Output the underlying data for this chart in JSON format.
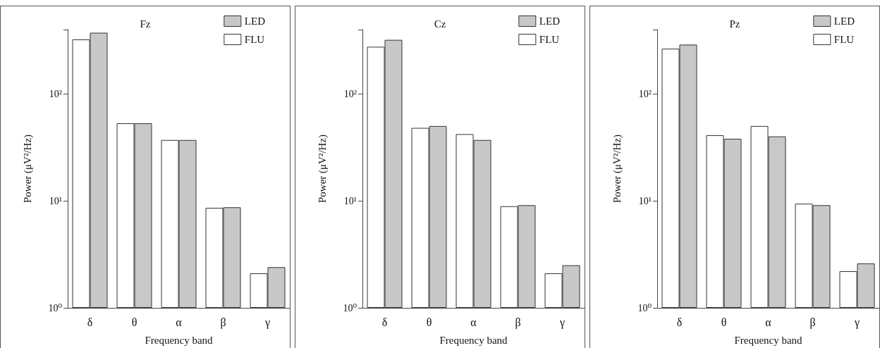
{
  "chart_data": [
    {
      "type": "bar",
      "title": "Fz",
      "xlabel": "Frequency band",
      "ylabel": "Power (μV²/Hz)",
      "categories": [
        "δ",
        "θ",
        "α",
        "β",
        "γ"
      ],
      "log": true,
      "ylim": [
        1,
        398
      ],
      "yticks": [
        {
          "value": 1,
          "label": "10⁰"
        },
        {
          "value": 10,
          "label": "10¹"
        },
        {
          "value": 100,
          "label": "10²"
        },
        {
          "value": 398,
          "label": null
        }
      ],
      "legend": "top right",
      "grid": false,
      "series": [
        {
          "name": "FLU",
          "color": "#ffffff",
          "values": [
            322,
            53,
            37,
            8.6,
            2.1
          ]
        },
        {
          "name": "LED",
          "color": "#c8c8c8",
          "values": [
            372,
            53,
            37,
            8.7,
            2.4
          ]
        }
      ]
    },
    {
      "type": "bar",
      "title": "Cz",
      "xlabel": "Frequency band",
      "ylabel": "Power (μV²/Hz)",
      "categories": [
        "δ",
        "θ",
        "α",
        "β",
        "γ"
      ],
      "log": true,
      "ylim": [
        1,
        398
      ],
      "yticks": [
        {
          "value": 1,
          "label": "10⁰"
        },
        {
          "value": 10,
          "label": "10¹"
        },
        {
          "value": 100,
          "label": "10²"
        },
        {
          "value": 398,
          "label": null
        }
      ],
      "legend": "top right",
      "grid": false,
      "series": [
        {
          "name": "FLU",
          "color": "#ffffff",
          "values": [
            275,
            48,
            42,
            8.9,
            2.1
          ]
        },
        {
          "name": "LED",
          "color": "#c8c8c8",
          "values": [
            319,
            50,
            37,
            9.1,
            2.5
          ]
        }
      ]
    },
    {
      "type": "bar",
      "title": "Pz",
      "xlabel": "Frequency band",
      "ylabel": "Power (μV²/Hz)",
      "categories": [
        "δ",
        "θ",
        "α",
        "β",
        "γ"
      ],
      "log": true,
      "ylim": [
        1,
        398
      ],
      "yticks": [
        {
          "value": 1,
          "label": "10⁰"
        },
        {
          "value": 10,
          "label": "10¹"
        },
        {
          "value": 100,
          "label": "10²"
        },
        {
          "value": 398,
          "label": null
        }
      ],
      "legend": "top right",
      "grid": false,
      "series": [
        {
          "name": "FLU",
          "color": "#ffffff",
          "values": [
            264,
            41,
            50,
            9.4,
            2.2
          ]
        },
        {
          "name": "LED",
          "color": "#c8c8c8",
          "values": [
            288,
            38,
            40,
            9.1,
            2.6
          ]
        }
      ]
    }
  ]
}
